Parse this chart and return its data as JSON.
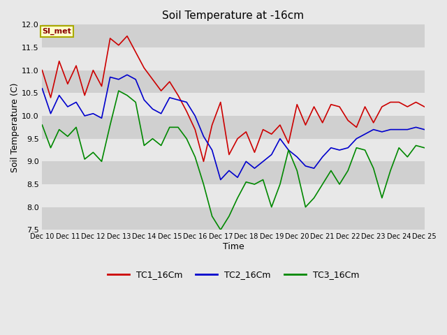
{
  "title": "Soil Temperature at -16cm",
  "xlabel": "Time",
  "ylabel": "Soil Temperature (C)",
  "ylim": [
    7.5,
    12.0
  ],
  "xlim": [
    0,
    15
  ],
  "yticks": [
    7.5,
    8.0,
    8.5,
    9.0,
    9.5,
    10.0,
    10.5,
    11.0,
    11.5,
    12.0
  ],
  "xtick_labels": [
    "Dec 10",
    "Dec 11",
    "Dec 12",
    "Dec 13",
    "Dec 14",
    "Dec 15",
    "Dec 16",
    "Dec 17",
    "Dec 18",
    "Dec 19",
    "Dec 20",
    "Dec 21",
    "Dec 22",
    "Dec 23",
    "Dec 24",
    "Dec 25"
  ],
  "fig_bg_color": "#e8e8e8",
  "plot_bg_color": "#e8e8e8",
  "band_dark": "#d0d0d0",
  "band_light": "#e8e8e8",
  "line_colors": [
    "#cc0000",
    "#0000cc",
    "#008800"
  ],
  "legend_labels": [
    "TC1_16Cm",
    "TC2_16Cm",
    "TC3_16Cm"
  ],
  "annotation_text": "SI_met",
  "tc1": [
    11.0,
    10.4,
    11.2,
    10.7,
    11.1,
    10.45,
    11.0,
    10.65,
    11.7,
    11.55,
    11.75,
    11.4,
    11.05,
    10.8,
    10.55,
    10.75,
    10.45,
    10.1,
    9.7,
    9.0,
    9.8,
    10.3,
    9.15,
    9.5,
    9.65,
    9.2,
    9.7,
    9.6,
    9.8,
    9.4,
    10.25,
    9.8,
    10.2,
    9.85,
    10.25,
    10.2,
    9.9,
    9.75,
    10.2,
    9.85,
    10.2,
    10.3,
    10.3,
    10.2,
    10.3,
    10.2
  ],
  "tc2": [
    10.6,
    10.05,
    10.45,
    10.2,
    10.3,
    10.0,
    10.05,
    9.95,
    10.85,
    10.8,
    10.9,
    10.8,
    10.35,
    10.15,
    10.05,
    10.4,
    10.35,
    10.3,
    10.0,
    9.55,
    9.25,
    8.6,
    8.8,
    8.65,
    9.0,
    8.85,
    9.0,
    9.15,
    9.5,
    9.25,
    9.1,
    8.9,
    8.85,
    9.1,
    9.3,
    9.25,
    9.3,
    9.5,
    9.6,
    9.7,
    9.65,
    9.7,
    9.7,
    9.7,
    9.75,
    9.7
  ],
  "tc3": [
    9.8,
    9.3,
    9.7,
    9.55,
    9.75,
    9.05,
    9.2,
    9.0,
    9.8,
    10.55,
    10.45,
    10.3,
    9.35,
    9.5,
    9.35,
    9.75,
    9.75,
    9.5,
    9.1,
    8.5,
    7.8,
    7.5,
    7.8,
    8.2,
    8.55,
    8.5,
    8.6,
    8.0,
    8.5,
    9.25,
    8.8,
    8.0,
    8.2,
    8.5,
    8.8,
    8.5,
    8.8,
    9.3,
    9.25,
    8.85,
    8.2,
    8.8,
    9.3,
    9.1,
    9.35,
    9.3
  ]
}
